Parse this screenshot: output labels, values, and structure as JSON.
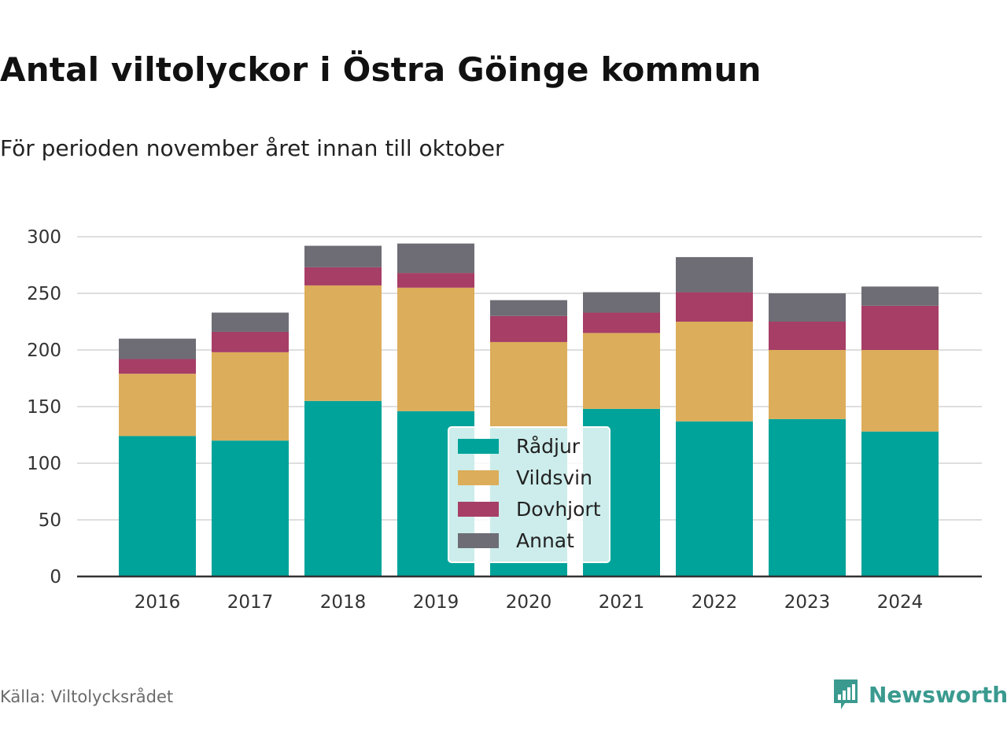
{
  "header": {
    "title": "Antal viltolyckor i Östra Göinge kommun",
    "subtitle": "För perioden november året innan till oktober"
  },
  "footer": {
    "source": "Källa: Viltolycksrådet",
    "brand": "Newsworthy",
    "brand_icon": "bar-chart-speech-bubble-icon"
  },
  "chart_data": {
    "type": "bar",
    "stacked": true,
    "categories": [
      "2016",
      "2017",
      "2018",
      "2019",
      "2020",
      "2021",
      "2022",
      "2023",
      "2024"
    ],
    "series": [
      {
        "name": "Rådjur",
        "color": "#00a39a",
        "values": [
          124,
          120,
          155,
          146,
          131,
          148,
          137,
          139,
          128
        ]
      },
      {
        "name": "Vildsvin",
        "color": "#dcad5a",
        "values": [
          55,
          78,
          102,
          109,
          76,
          67,
          88,
          61,
          72
        ]
      },
      {
        "name": "Dovhjort",
        "color": "#a63e66",
        "values": [
          13,
          18,
          16,
          13,
          23,
          18,
          26,
          25,
          39
        ]
      },
      {
        "name": "Annat",
        "color": "#6e6d75",
        "values": [
          18,
          17,
          19,
          26,
          14,
          18,
          31,
          25,
          17
        ]
      }
    ],
    "ylim": [
      0,
      300
    ],
    "yticks": [
      0,
      50,
      100,
      150,
      200,
      250,
      300
    ],
    "grid": true,
    "legend_position": "center-bottom overlay"
  }
}
